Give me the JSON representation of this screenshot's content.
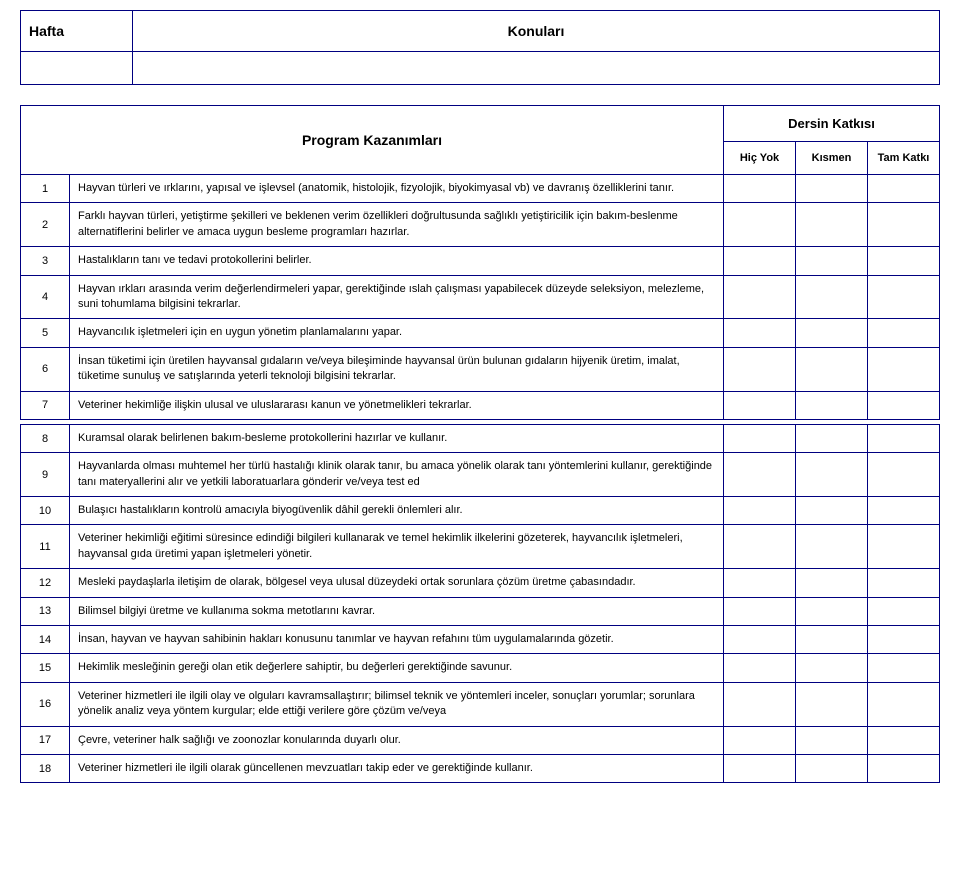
{
  "header": {
    "left": "Hafta",
    "right": "Konuları"
  },
  "main": {
    "program_title": "Program Kazanımları",
    "contribution_title": "Dersin Katkısı",
    "sub_headers": {
      "none": "Hiç Yok",
      "partial": "Kısmen",
      "full": "Tam Katkı"
    }
  },
  "rows": [
    {
      "n": "1",
      "t": "Hayvan türleri ve ırklarını, yapısal ve işlevsel (anatomik, histolojik, fizyolojik, biyokimyasal vb) ve davranış özelliklerini tanır."
    },
    {
      "n": "2",
      "t": "Farklı hayvan türleri, yetiştirme şekilleri ve beklenen verim özellikleri doğrultusunda sağlıklı yetiştiricilik için bakım-beslenme alternatiflerini belirler ve amaca uygun besleme programları hazırlar."
    },
    {
      "n": "3",
      "t": "Hastalıkların tanı ve tedavi protokollerini belirler."
    },
    {
      "n": "4",
      "t": "Hayvan ırkları arasında verim değerlendirmeleri yapar, gerektiğinde ıslah çalışması yapabilecek düzeyde seleksiyon, melezleme, suni tohumlama bilgisini tekrarlar."
    },
    {
      "n": "5",
      "t": "Hayvancılık işletmeleri için en uygun yönetim planlamalarını yapar."
    },
    {
      "n": "6",
      "t": "İnsan tüketimi için üretilen hayvansal gıdaların ve/veya bileşiminde hayvansal ürün bulunan gıdaların hijyenik üretim, imalat, tüketime sunuluş ve satışlarında yeterli teknoloji bilgisini tekrarlar."
    },
    {
      "n": "7",
      "t": "Veteriner hekimliğe ilişkin ulusal ve uluslararası kanun ve yönetmelikleri tekrarlar."
    },
    {
      "n": "8",
      "t": "Kuramsal olarak belirlenen bakım-besleme protokollerini hazırlar ve kullanır."
    },
    {
      "n": "9",
      "t": "Hayvanlarda olması muhtemel her türlü hastalığı klinik olarak tanır, bu amaca yönelik olarak tanı yöntemlerini kullanır, gerektiğinde tanı materyallerini alır ve yetkili laboratuarlara gönderir ve/veya test ed"
    },
    {
      "n": "10",
      "t": "Bulaşıcı hastalıkların kontrolü amacıyla biyogüvenlik dâhil gerekli önlemleri alır."
    },
    {
      "n": "11",
      "t": "Veteriner hekimliği eğitimi süresince edindiği bilgileri kullanarak ve temel hekimlik ilkelerini gözeterek, hayvancılık işletmeleri, hayvansal gıda üretimi yapan işletmeleri yönetir."
    },
    {
      "n": "12",
      "t": "Mesleki paydaşlarla iletişim de olarak, bölgesel veya ulusal düzeydeki ortak sorunlara çözüm üretme çabasındadır."
    },
    {
      "n": "13",
      "t": "Bilimsel bilgiyi üretme ve kullanıma sokma metotlarını kavrar."
    },
    {
      "n": "14",
      "t": "İnsan, hayvan ve hayvan sahibinin hakları konusunu tanımlar ve hayvan refahını tüm uygulamalarında gözetir."
    },
    {
      "n": "15",
      "t": "Hekimlik mesleğinin gereği olan etik değerlere sahiptir, bu değerleri gerektiğinde savunur."
    },
    {
      "n": "16",
      "t": "Veteriner hizmetleri ile ilgili olay ve olguları kavramsallaştırır; bilimsel teknik ve yöntemleri inceler, sonuçları yorumlar; sorunlara yönelik analiz veya yöntem kurgular; elde ettiği verilere göre çözüm ve/veya"
    },
    {
      "n": "17",
      "t": "Çevre, veteriner halk sağlığı ve zoonozlar konularında duyarlı olur."
    },
    {
      "n": "18",
      "t": "Veteriner hizmetleri ile ilgili olarak güncellenen mevzuatları takip eder ve gerektiğinde kullanır."
    }
  ],
  "gaps_after": [
    7
  ]
}
